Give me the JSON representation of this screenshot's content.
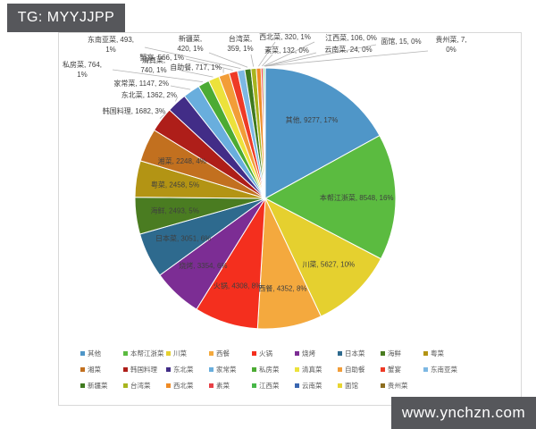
{
  "badges": {
    "tg": "TG: MYYJJPP",
    "site": "www.ynchzn.com"
  },
  "chart_data": {
    "type": "pie",
    "title": "",
    "total": 54570,
    "legend_position": "bottom",
    "label_format": "name, value, percent",
    "colors": {
      "label_text": "#3f3f3f",
      "legend_text": "#595959",
      "leader_line": "#b3b3b3",
      "badge_bg": "#56575b"
    },
    "slices": [
      {
        "name": "其他",
        "value": 9277,
        "pct": "17%",
        "color": "#4f96c8"
      },
      {
        "name": "本帮江浙菜",
        "value": 8548,
        "pct": "16%",
        "color": "#5bbb40"
      },
      {
        "name": "川菜",
        "value": 5627,
        "pct": "10%",
        "color": "#e5d02f"
      },
      {
        "name": "西餐",
        "value": 4352,
        "pct": "8%",
        "color": "#f4a93e"
      },
      {
        "name": "火锅",
        "value": 4308,
        "pct": "8%",
        "color": "#f42f1e"
      },
      {
        "name": "烧烤",
        "value": 3354,
        "pct": "6%",
        "color": "#7c2d94"
      },
      {
        "name": "日本菜",
        "value": 3051,
        "pct": "6%",
        "color": "#2e6a8e"
      },
      {
        "name": "海鲜",
        "value": 2493,
        "pct": "5%",
        "color": "#4a7c21"
      },
      {
        "name": "粤菜",
        "value": 2458,
        "pct": "5%",
        "color": "#b39414"
      },
      {
        "name": "湘菜",
        "value": 2248,
        "pct": "4%",
        "color": "#c2701f"
      },
      {
        "name": "韩国料理",
        "value": 1682,
        "pct": "3%",
        "color": "#ae1e19"
      },
      {
        "name": "东北菜",
        "value": 1362,
        "pct": "2%",
        "color": "#422d87"
      },
      {
        "name": "家常菜",
        "value": 1147,
        "pct": "2%",
        "color": "#69aedd"
      },
      {
        "name": "私房菜",
        "value": 764,
        "pct": "1%",
        "color": "#4cab33"
      },
      {
        "name": "清真菜",
        "value": 740,
        "pct": "1%",
        "color": "#ece23b"
      },
      {
        "name": "自助餐",
        "value": 717,
        "pct": "1%",
        "color": "#f29d38"
      },
      {
        "name": "蟹宴",
        "value": 566,
        "pct": "1%",
        "color": "#ee3a26"
      },
      {
        "name": "东南亚菜",
        "value": 493,
        "pct": "1%",
        "color": "#7db8e3"
      },
      {
        "name": "新疆菜",
        "value": 420,
        "pct": "1%",
        "color": "#3f7a1e"
      },
      {
        "name": "台湾菜",
        "value": 359,
        "pct": "1%",
        "color": "#a8b51e"
      },
      {
        "name": "西北菜",
        "value": 320,
        "pct": "1%",
        "color": "#ef8b25"
      },
      {
        "name": "素菜",
        "value": 132,
        "pct": "0%",
        "color": "#e84046"
      },
      {
        "name": "江西菜",
        "value": 106,
        "pct": "0%",
        "color": "#47b749"
      },
      {
        "name": "云南菜",
        "value": 24,
        "pct": "0%",
        "color": "#3a66b0"
      },
      {
        "name": "面馆",
        "value": 15,
        "pct": "0%",
        "color": "#e8d531"
      },
      {
        "name": "贵州菜",
        "value": 7,
        "pct": "0%",
        "color": "#8c6d1f"
      }
    ]
  }
}
